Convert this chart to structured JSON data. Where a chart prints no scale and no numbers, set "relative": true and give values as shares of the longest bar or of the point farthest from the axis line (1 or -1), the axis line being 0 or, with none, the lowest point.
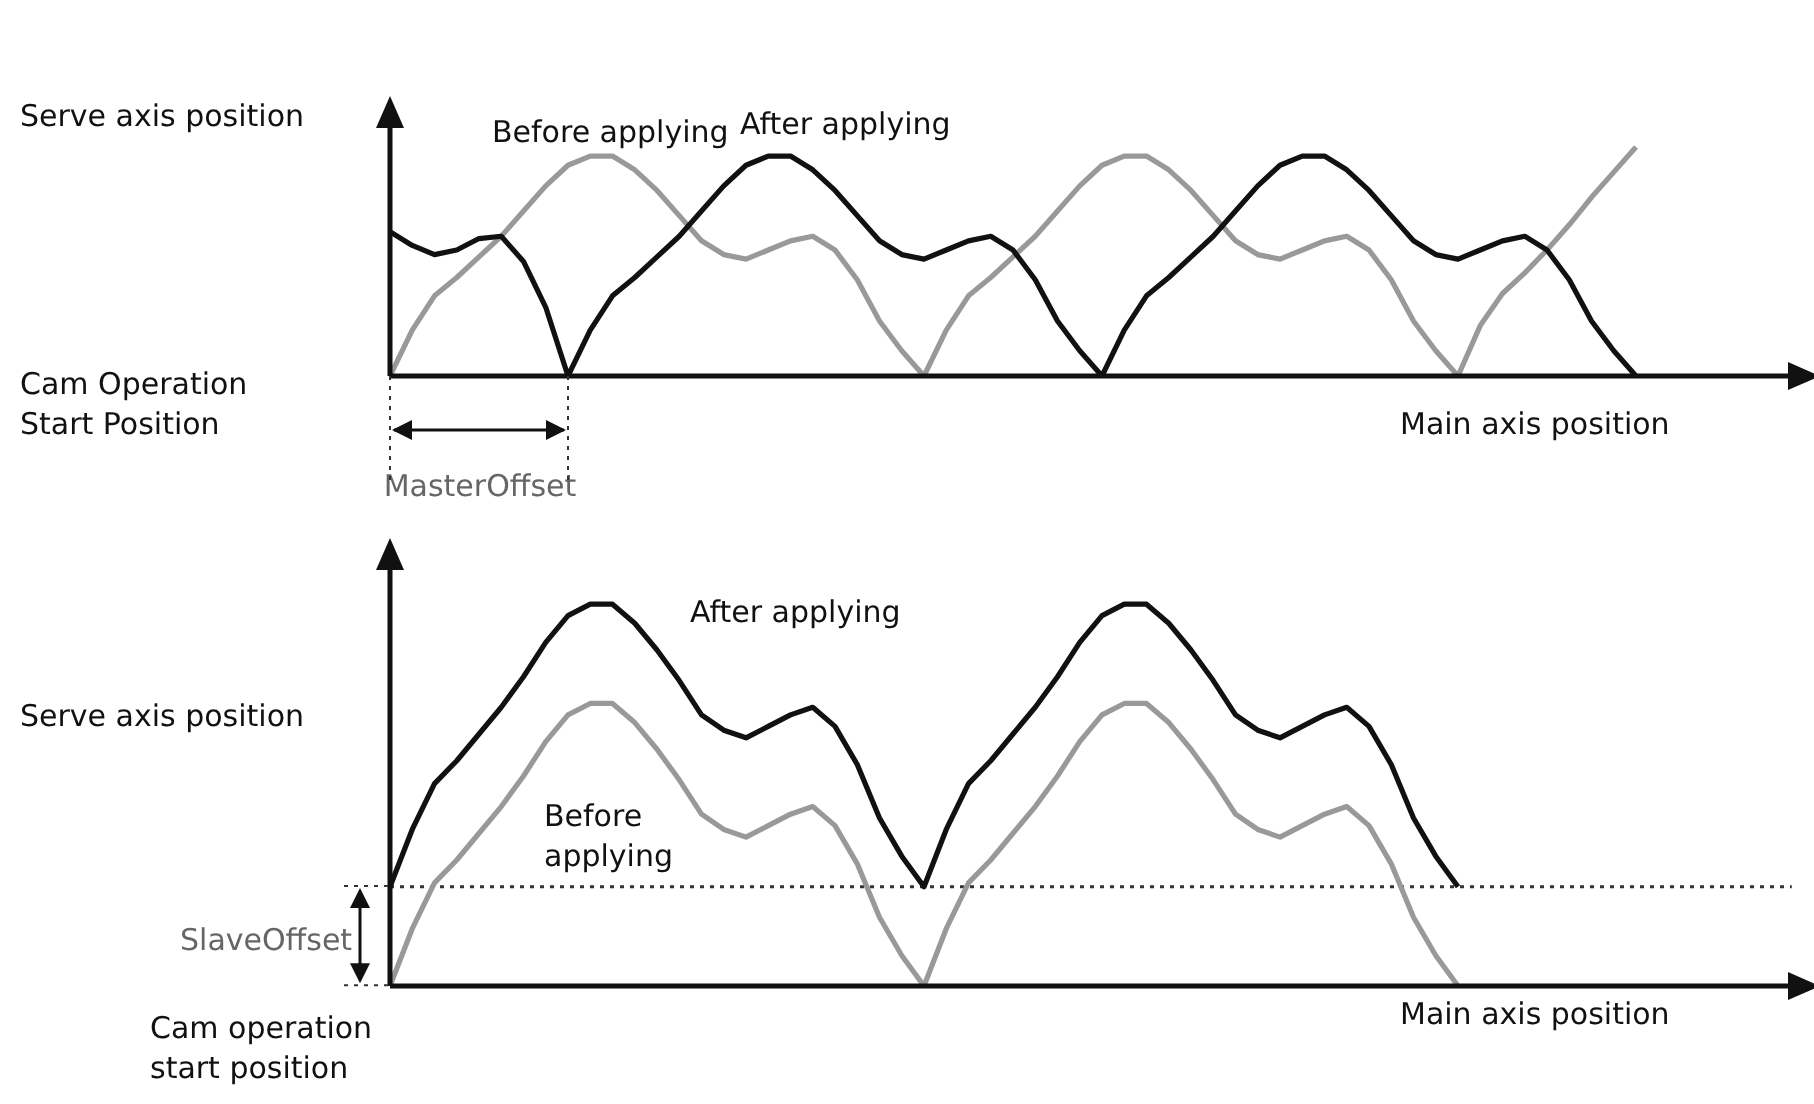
{
  "chart_data": [
    {
      "type": "line",
      "relative": true,
      "ylabel": "Serve axis position",
      "xlabel": "Main axis position",
      "marker": "none",
      "categories": [
        null,
        null,
        null,
        null,
        null,
        null,
        null,
        null,
        null,
        null,
        null,
        null,
        null,
        null,
        null,
        null,
        null,
        null,
        null,
        null,
        null,
        null,
        null,
        null,
        null,
        null,
        null,
        null,
        null,
        null,
        null,
        null,
        null,
        null,
        null,
        null,
        null,
        null,
        null,
        null,
        null,
        null,
        null,
        null,
        null,
        null,
        null,
        null,
        null,
        null,
        null,
        null,
        null,
        null,
        null,
        null,
        null
      ],
      "series": [
        {
          "name": "Before applying",
          "color": "#999999",
          "values": [
            0,
            0.2,
            0.35,
            0.43,
            0.52,
            0.61,
            0.72,
            0.83,
            0.92,
            0.96,
            0.96,
            0.9,
            0.81,
            0.7,
            0.59,
            0.53,
            0.51,
            0.55,
            0.59,
            0.61,
            0.55,
            0.42,
            0.24,
            0.11,
            0,
            0.2,
            0.35,
            0.43,
            0.52,
            0.61,
            0.72,
            0.83,
            0.92,
            0.96,
            0.96,
            0.9,
            0.81,
            0.7,
            0.59,
            0.53,
            0.51,
            0.55,
            0.59,
            0.61,
            0.55,
            0.42,
            0.24,
            0.11,
            0,
            0.22,
            0.36,
            0.45,
            0.55,
            0.66,
            0.78,
            0.89,
            1.0
          ]
        },
        {
          "name": "After applying",
          "color": "#111111",
          "values": [
            0.63,
            0.57,
            0.53,
            0.55,
            0.6,
            0.61,
            0.5,
            0.3,
            0,
            0.2,
            0.35,
            0.43,
            0.52,
            0.61,
            0.72,
            0.83,
            0.92,
            0.96,
            0.96,
            0.9,
            0.81,
            0.7,
            0.59,
            0.53,
            0.51,
            0.55,
            0.59,
            0.61,
            0.55,
            0.42,
            0.24,
            0.11,
            0,
            0.2,
            0.35,
            0.43,
            0.52,
            0.61,
            0.72,
            0.83,
            0.92,
            0.96,
            0.96,
            0.9,
            0.81,
            0.7,
            0.59,
            0.53,
            0.51,
            0.55,
            0.59,
            0.61,
            0.55,
            0.42,
            0.24,
            0.11,
            0
          ]
        }
      ],
      "annotations": [
        "Cam Operation Start Position",
        "MasterOffset"
      ]
    },
    {
      "type": "line",
      "relative": true,
      "ylabel": "Serve axis position",
      "xlabel": "Main axis position",
      "marker": "none",
      "categories": [
        null,
        null,
        null,
        null,
        null,
        null,
        null,
        null,
        null,
        null,
        null,
        null,
        null,
        null,
        null,
        null,
        null,
        null,
        null,
        null,
        null,
        null,
        null,
        null,
        null,
        null,
        null,
        null,
        null,
        null,
        null,
        null,
        null,
        null,
        null,
        null,
        null,
        null,
        null,
        null,
        null,
        null,
        null,
        null,
        null,
        null,
        null,
        null,
        null
      ],
      "series": [
        {
          "name": "Before applying",
          "color": "#999999",
          "values": [
            0,
            0.15,
            0.27,
            0.33,
            0.4,
            0.47,
            0.55,
            0.64,
            0.71,
            0.74,
            0.74,
            0.69,
            0.62,
            0.54,
            0.45,
            0.41,
            0.39,
            0.42,
            0.45,
            0.47,
            0.42,
            0.32,
            0.18,
            0.08,
            0,
            0.15,
            0.27,
            0.33,
            0.4,
            0.47,
            0.55,
            0.64,
            0.71,
            0.74,
            0.74,
            0.69,
            0.62,
            0.54,
            0.45,
            0.41,
            0.39,
            0.42,
            0.45,
            0.47,
            0.42,
            0.32,
            0.18,
            0.08,
            0
          ]
        },
        {
          "name": "After applying",
          "color": "#111111",
          "values": [
            0.26,
            0.41,
            0.53,
            0.59,
            0.66,
            0.73,
            0.81,
            0.9,
            0.97,
            1,
            1,
            0.95,
            0.88,
            0.8,
            0.71,
            0.67,
            0.65,
            0.68,
            0.71,
            0.73,
            0.68,
            0.58,
            0.44,
            0.34,
            0.26,
            0.41,
            0.53,
            0.59,
            0.66,
            0.73,
            0.81,
            0.9,
            0.97,
            1,
            1,
            0.95,
            0.88,
            0.8,
            0.71,
            0.67,
            0.65,
            0.68,
            0.71,
            0.73,
            0.68,
            0.58,
            0.44,
            0.34,
            0.26
          ]
        }
      ],
      "ref_lines": [
        {
          "axis": "y",
          "value": 0.26,
          "line_style": "dotted",
          "color": "#333333"
        }
      ],
      "annotations": [
        "Cam operation start position",
        "SlaveOffset"
      ]
    }
  ]
}
